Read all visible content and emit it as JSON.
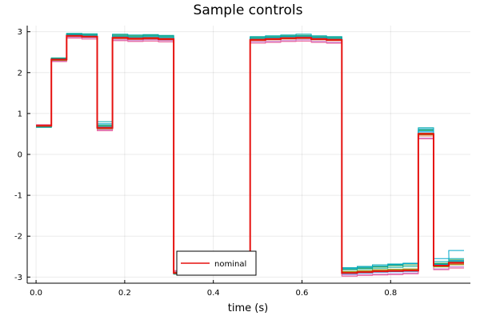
{
  "chart_data": {
    "type": "line",
    "step": true,
    "title": "Sample controls",
    "xlabel": "time (s)",
    "ylabel": "",
    "xlim": [
      -0.02,
      0.98
    ],
    "ylim": [
      -3.15,
      3.15
    ],
    "xticks": [
      0.0,
      0.2,
      0.4,
      0.6,
      0.8
    ],
    "xtick_labels": [
      "0.0",
      "0.2",
      "0.4",
      "0.6",
      "0.8"
    ],
    "yticks": [
      -3,
      -2,
      -1,
      0,
      1,
      2,
      3
    ],
    "ytick_labels": [
      "-3",
      "-2",
      "-1",
      "0",
      "1",
      "2",
      "3"
    ],
    "grid": true,
    "legend": {
      "position": "bottom-center",
      "entries": [
        "nominal"
      ]
    },
    "nominal": {
      "name": "nominal",
      "color": "#e6110f",
      "x": [
        0.0,
        0.0345,
        0.069,
        0.1035,
        0.138,
        0.1725,
        0.207,
        0.2415,
        0.276,
        0.3105,
        0.345,
        0.3795,
        0.414,
        0.4485,
        0.483,
        0.5175,
        0.552,
        0.5865,
        0.621,
        0.6555,
        0.69,
        0.7245,
        0.759,
        0.7935,
        0.828,
        0.8625,
        0.897,
        0.931
      ],
      "y": [
        0.7,
        2.32,
        2.9,
        2.88,
        0.65,
        2.85,
        2.83,
        2.84,
        2.82,
        -2.9,
        -2.88,
        -2.87,
        -2.89,
        -2.88,
        2.8,
        2.82,
        2.84,
        2.85,
        2.82,
        2.8,
        -2.9,
        -2.88,
        -2.86,
        -2.85,
        -2.84,
        0.5,
        -2.72,
        -2.65
      ]
    },
    "samples": [
      {
        "color": "#009af9",
        "y": [
          0.69,
          2.33,
          2.93,
          2.9,
          0.68,
          2.87,
          2.85,
          2.86,
          2.84,
          -2.91,
          -2.89,
          -2.88,
          -2.9,
          -2.89,
          2.82,
          2.84,
          2.86,
          2.87,
          2.84,
          2.82,
          -2.92,
          -2.9,
          -2.88,
          -2.87,
          -2.86,
          0.55,
          -2.7,
          -2.6
        ]
      },
      {
        "color": "#e26f46",
        "y": [
          0.71,
          2.31,
          2.88,
          2.86,
          0.62,
          2.83,
          2.81,
          2.82,
          2.8,
          -2.89,
          -2.87,
          -2.86,
          -2.88,
          -2.87,
          2.78,
          2.8,
          2.82,
          2.83,
          2.8,
          2.78,
          -2.88,
          -2.86,
          -2.84,
          -2.83,
          -2.82,
          0.45,
          -2.74,
          -2.68
        ]
      },
      {
        "color": "#3da44d",
        "y": [
          0.68,
          2.35,
          2.95,
          2.94,
          0.7,
          2.92,
          2.9,
          2.92,
          2.9,
          -2.93,
          -2.9,
          -2.9,
          -2.92,
          -2.91,
          2.86,
          2.88,
          2.9,
          2.91,
          2.88,
          2.86,
          -2.8,
          -2.78,
          -2.75,
          -2.72,
          -2.7,
          0.6,
          -2.66,
          -2.58
        ]
      },
      {
        "color": "#c271d2",
        "y": [
          0.72,
          2.29,
          2.86,
          2.85,
          0.6,
          2.8,
          2.78,
          2.8,
          2.78,
          -2.86,
          -2.84,
          -2.84,
          -2.86,
          -2.85,
          2.75,
          2.76,
          2.78,
          2.8,
          2.76,
          2.74,
          -2.95,
          -2.94,
          -2.93,
          -2.92,
          -2.9,
          0.4,
          -2.8,
          -2.75
        ]
      },
      {
        "color": "#ac8d18",
        "y": [
          0.7,
          2.3,
          2.9,
          2.89,
          0.66,
          2.86,
          2.84,
          2.85,
          2.83,
          -2.9,
          -2.88,
          -2.87,
          -2.89,
          -2.88,
          2.8,
          2.81,
          2.83,
          2.84,
          2.81,
          2.79,
          -2.89,
          -2.87,
          -2.86,
          -2.85,
          -2.83,
          0.52,
          -2.71,
          -2.64
        ]
      },
      {
        "color": "#00a9ad",
        "y": [
          0.66,
          2.34,
          2.96,
          2.95,
          0.8,
          2.94,
          2.92,
          2.93,
          2.91,
          -2.92,
          -2.9,
          -2.89,
          -2.91,
          -2.9,
          2.88,
          2.9,
          2.92,
          2.94,
          2.9,
          2.88,
          -2.77,
          -2.74,
          -2.7,
          -2.68,
          -2.66,
          0.65,
          -2.62,
          -2.55
        ]
      },
      {
        "color": "#ed5e93",
        "y": [
          0.73,
          2.27,
          2.84,
          2.82,
          0.58,
          2.78,
          2.76,
          2.77,
          2.75,
          -2.84,
          -2.82,
          -2.82,
          -2.84,
          -2.83,
          2.72,
          2.74,
          2.76,
          2.77,
          2.74,
          2.72,
          -2.98,
          -2.96,
          -2.95,
          -2.94,
          -2.92,
          0.38,
          -2.82,
          -2.78
        ]
      },
      {
        "color": "#c68125",
        "y": [
          0.69,
          2.32,
          2.91,
          2.9,
          0.64,
          2.88,
          2.86,
          2.87,
          2.85,
          -2.91,
          -2.89,
          -2.88,
          -2.9,
          -2.89,
          2.83,
          2.85,
          2.87,
          2.88,
          2.85,
          2.83,
          -2.87,
          -2.85,
          -2.83,
          -2.82,
          -2.81,
          0.5,
          -2.73,
          -2.66
        ]
      },
      {
        "color": "#00a98d",
        "y": [
          0.67,
          2.36,
          2.94,
          2.92,
          0.72,
          2.9,
          2.88,
          2.9,
          2.88,
          -2.92,
          -2.9,
          -2.89,
          -2.91,
          -2.9,
          2.85,
          2.87,
          2.89,
          2.9,
          2.87,
          2.85,
          -2.82,
          -2.8,
          -2.78,
          -2.76,
          -2.74,
          0.58,
          -2.68,
          -2.62
        ]
      },
      {
        "color": "#8e971e",
        "y": [
          0.71,
          2.3,
          2.89,
          2.87,
          0.63,
          2.84,
          2.82,
          2.83,
          2.81,
          -2.88,
          -2.86,
          -2.85,
          -2.87,
          -2.86,
          2.79,
          2.81,
          2.83,
          2.84,
          2.81,
          2.79,
          -2.86,
          -2.84,
          -2.82,
          -2.81,
          -2.8,
          0.48,
          -2.75,
          -2.7
        ]
      },
      {
        "color": "#00a8cb",
        "y": [
          0.7,
          2.33,
          2.92,
          2.91,
          0.75,
          2.89,
          2.87,
          2.88,
          2.86,
          -2.91,
          -2.89,
          -2.88,
          -2.9,
          -2.89,
          2.84,
          2.86,
          2.88,
          2.89,
          2.86,
          2.84,
          -2.79,
          -2.76,
          -2.73,
          -2.7,
          -2.67,
          0.62,
          -2.55,
          -2.35
        ]
      }
    ]
  }
}
